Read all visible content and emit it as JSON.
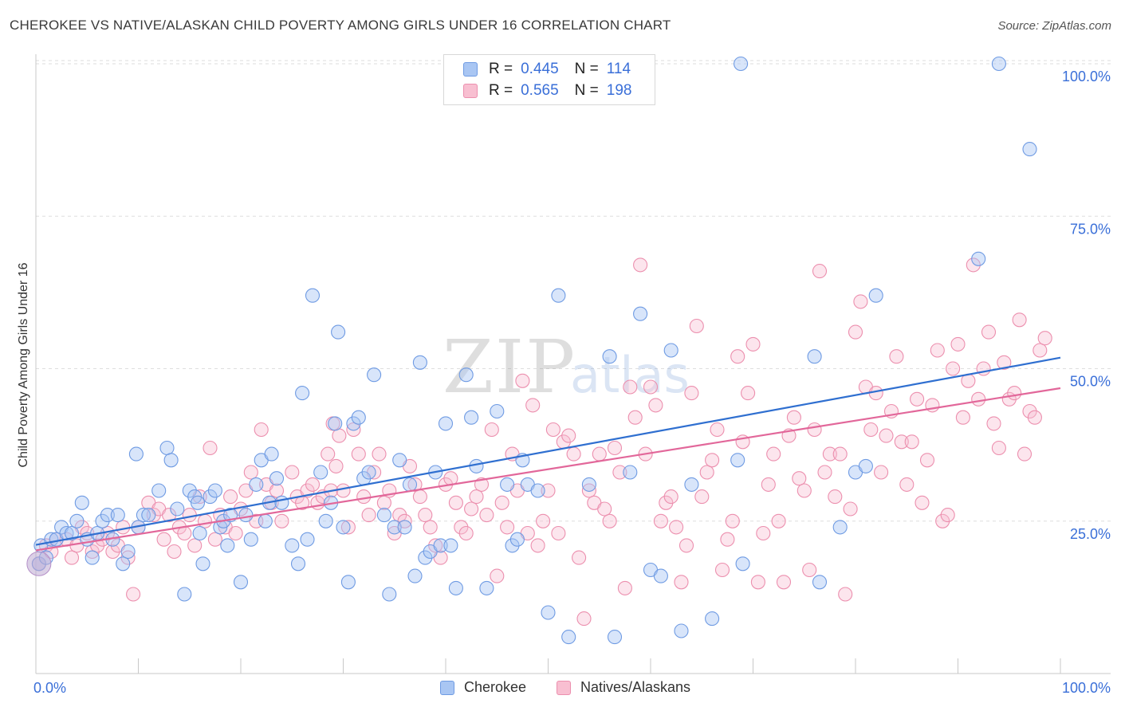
{
  "header": {
    "title": "CHEROKEE VS NATIVE/ALASKAN CHILD POVERTY AMONG GIRLS UNDER 16 CORRELATION CHART",
    "source": "Source: ZipAtlas.com"
  },
  "watermark": {
    "zip": "ZIP",
    "atlas": "atlas"
  },
  "legend": {
    "rows": [
      {
        "r_label": "R =",
        "r_value": "0.445",
        "n_label": "N =",
        "n_value": "114",
        "color": "#a9c6f3",
        "stroke": "#6f9be3"
      },
      {
        "r_label": "R =",
        "r_value": "0.565",
        "n_label": "N =",
        "n_value": "198",
        "color": "#f8bfd1",
        "stroke": "#ec8fae"
      }
    ]
  },
  "bottom_legend": [
    {
      "label": "Cherokee",
      "color": "#a9c6f3",
      "stroke": "#6f9be3"
    },
    {
      "label": "Natives/Alaskans",
      "color": "#f8bfd1",
      "stroke": "#ec8fae"
    }
  ],
  "chart_data": {
    "type": "scatter",
    "title": "CHEROKEE VS NATIVE/ALASKAN CHILD POVERTY AMONG GIRLS UNDER 16 CORRELATION CHART",
    "xlabel": "",
    "ylabel": "Child Poverty Among Girls Under 16",
    "xlim": [
      0,
      100
    ],
    "ylim": [
      0,
      100
    ],
    "x_tick_labels": [
      "0.0%",
      "100.0%"
    ],
    "y_tick_labels": [
      "25.0%",
      "50.0%",
      "75.0%",
      "100.0%"
    ],
    "y_ticks": [
      25,
      50,
      75,
      100
    ],
    "grid": "horizontal dashed",
    "legend_position": "top-center",
    "series": [
      {
        "name": "Cherokee",
        "color": "#6f9be3",
        "trend": {
          "x": [
            0,
            100
          ],
          "y": [
            21.1,
            51.8
          ]
        },
        "points": [
          [
            0.3,
            18
          ],
          [
            0.5,
            21
          ],
          [
            1,
            19
          ],
          [
            1.5,
            22
          ],
          [
            2,
            22
          ],
          [
            2.5,
            24
          ],
          [
            3,
            23
          ],
          [
            3.5,
            23
          ],
          [
            4,
            25
          ],
          [
            4.5,
            28
          ],
          [
            5,
            22
          ],
          [
            5.5,
            19
          ],
          [
            6,
            23
          ],
          [
            6.5,
            25
          ],
          [
            7,
            26
          ],
          [
            7.5,
            22
          ],
          [
            8,
            26
          ],
          [
            8.5,
            18
          ],
          [
            9,
            20
          ],
          [
            9.8,
            36
          ],
          [
            10,
            24
          ],
          [
            10.5,
            26
          ],
          [
            11,
            26
          ],
          [
            12,
            30
          ],
          [
            12.8,
            37
          ],
          [
            13.2,
            35
          ],
          [
            13.8,
            27
          ],
          [
            14.5,
            13
          ],
          [
            15,
            30
          ],
          [
            15.5,
            29
          ],
          [
            15.8,
            28
          ],
          [
            16,
            23
          ],
          [
            16.3,
            18
          ],
          [
            17,
            29
          ],
          [
            17.5,
            30
          ],
          [
            18,
            24
          ],
          [
            18.3,
            25
          ],
          [
            18.7,
            21
          ],
          [
            19,
            26
          ],
          [
            20,
            15
          ],
          [
            20.5,
            26
          ],
          [
            21,
            22
          ],
          [
            21.5,
            31
          ],
          [
            22,
            35
          ],
          [
            22.4,
            25
          ],
          [
            22.8,
            28
          ],
          [
            23,
            36
          ],
          [
            23.5,
            32
          ],
          [
            24,
            28
          ],
          [
            25,
            21
          ],
          [
            25.6,
            18
          ],
          [
            26,
            46
          ],
          [
            26.5,
            22
          ],
          [
            27,
            62
          ],
          [
            27.8,
            33
          ],
          [
            28.3,
            25
          ],
          [
            28.8,
            28
          ],
          [
            29.2,
            41
          ],
          [
            29.5,
            56
          ],
          [
            30,
            24
          ],
          [
            30.5,
            15
          ],
          [
            31,
            41
          ],
          [
            31.5,
            42
          ],
          [
            32,
            32
          ],
          [
            32.5,
            33
          ],
          [
            33,
            49
          ],
          [
            34,
            26
          ],
          [
            34.5,
            13
          ],
          [
            35,
            24
          ],
          [
            35.5,
            35
          ],
          [
            36,
            24
          ],
          [
            36.5,
            31
          ],
          [
            37,
            16
          ],
          [
            37.5,
            51
          ],
          [
            38,
            19
          ],
          [
            38.5,
            20
          ],
          [
            39,
            33
          ],
          [
            39.5,
            21
          ],
          [
            40,
            41
          ],
          [
            40.5,
            21
          ],
          [
            41,
            14
          ],
          [
            42,
            49
          ],
          [
            42.5,
            42
          ],
          [
            43,
            34
          ],
          [
            44,
            14
          ],
          [
            45,
            43
          ],
          [
            46,
            31
          ],
          [
            46.5,
            21
          ],
          [
            47,
            22
          ],
          [
            47.5,
            35
          ],
          [
            48,
            31
          ],
          [
            49,
            30
          ],
          [
            50,
            10
          ],
          [
            51,
            62
          ],
          [
            52,
            6
          ],
          [
            54,
            31
          ],
          [
            56,
            52
          ],
          [
            56.5,
            6
          ],
          [
            58,
            33
          ],
          [
            59,
            59
          ],
          [
            60,
            17
          ],
          [
            61,
            16
          ],
          [
            62,
            53
          ],
          [
            63,
            7
          ],
          [
            64,
            31
          ],
          [
            66,
            9
          ],
          [
            68.8,
            100
          ],
          [
            68.5,
            35
          ],
          [
            69,
            18
          ],
          [
            76,
            52
          ],
          [
            76.5,
            15
          ],
          [
            78.5,
            24
          ],
          [
            80,
            33
          ],
          [
            81,
            34
          ],
          [
            82,
            62
          ],
          [
            92,
            68
          ],
          [
            94,
            100
          ],
          [
            97,
            86
          ]
        ]
      },
      {
        "name": "Natives/Alaskans",
        "color": "#ec8fae",
        "trend": {
          "x": [
            0,
            100
          ],
          "y": [
            20.2,
            46.8
          ]
        },
        "points": [
          [
            0.3,
            18
          ],
          [
            1,
            21
          ],
          [
            1.5,
            20
          ],
          [
            2,
            22
          ],
          [
            3,
            22
          ],
          [
            3.5,
            19
          ],
          [
            4,
            21
          ],
          [
            4.5,
            24
          ],
          [
            5,
            23
          ],
          [
            5.5,
            20
          ],
          [
            6,
            21
          ],
          [
            6.5,
            22
          ],
          [
            7,
            23
          ],
          [
            7.5,
            20
          ],
          [
            8,
            21
          ],
          [
            8.5,
            24
          ],
          [
            9,
            19
          ],
          [
            9.5,
            13
          ],
          [
            10,
            24
          ],
          [
            11,
            28
          ],
          [
            11.5,
            26
          ],
          [
            12,
            27
          ],
          [
            12.5,
            22
          ],
          [
            13,
            26
          ],
          [
            13.5,
            20
          ],
          [
            14,
            24
          ],
          [
            14.5,
            23
          ],
          [
            15,
            26
          ],
          [
            15.5,
            21
          ],
          [
            16,
            29
          ],
          [
            16.5,
            25
          ],
          [
            17,
            37
          ],
          [
            17.5,
            22
          ],
          [
            18,
            26
          ],
          [
            18.5,
            24
          ],
          [
            19,
            29
          ],
          [
            19.5,
            23
          ],
          [
            20,
            27
          ],
          [
            20.5,
            30
          ],
          [
            21,
            33
          ],
          [
            21.5,
            25
          ],
          [
            22,
            40
          ],
          [
            22.5,
            31
          ],
          [
            23,
            28
          ],
          [
            23.5,
            30
          ],
          [
            24,
            25
          ],
          [
            25,
            33
          ],
          [
            25.5,
            29
          ],
          [
            26,
            28
          ],
          [
            26.5,
            30
          ],
          [
            27,
            31
          ],
          [
            27.5,
            28
          ],
          [
            28,
            29
          ],
          [
            28.5,
            36
          ],
          [
            28.8,
            30
          ],
          [
            29,
            41
          ],
          [
            29.3,
            34
          ],
          [
            29.6,
            39
          ],
          [
            30,
            30
          ],
          [
            30.5,
            24
          ],
          [
            31,
            40
          ],
          [
            31.5,
            36
          ],
          [
            32,
            29
          ],
          [
            32.5,
            26
          ],
          [
            33,
            33
          ],
          [
            33.5,
            36
          ],
          [
            34,
            28
          ],
          [
            34.5,
            30
          ],
          [
            35,
            23
          ],
          [
            35.5,
            26
          ],
          [
            36,
            25
          ],
          [
            36.5,
            34
          ],
          [
            37,
            31
          ],
          [
            37.5,
            29
          ],
          [
            38,
            26
          ],
          [
            38.5,
            24
          ],
          [
            39,
            21
          ],
          [
            39.5,
            19
          ],
          [
            40,
            31
          ],
          [
            40.5,
            32
          ],
          [
            41,
            28
          ],
          [
            41.5,
            24
          ],
          [
            42,
            23
          ],
          [
            42.5,
            27
          ],
          [
            43,
            29
          ],
          [
            43.5,
            31
          ],
          [
            44,
            26
          ],
          [
            44.5,
            40
          ],
          [
            45,
            16
          ],
          [
            45.5,
            28
          ],
          [
            46,
            24
          ],
          [
            46.5,
            36
          ],
          [
            47,
            30
          ],
          [
            47.5,
            48
          ],
          [
            48,
            23
          ],
          [
            48.5,
            44
          ],
          [
            49,
            21
          ],
          [
            49.5,
            25
          ],
          [
            50,
            30
          ],
          [
            50.5,
            40
          ],
          [
            51,
            23
          ],
          [
            51.5,
            38
          ],
          [
            52,
            39
          ],
          [
            52.5,
            36
          ],
          [
            53,
            19
          ],
          [
            53.5,
            9
          ],
          [
            54,
            30
          ],
          [
            54.5,
            28
          ],
          [
            55,
            36
          ],
          [
            55.5,
            27
          ],
          [
            56,
            25
          ],
          [
            56.5,
            37
          ],
          [
            57,
            33
          ],
          [
            57.5,
            14
          ],
          [
            58,
            47
          ],
          [
            58.5,
            42
          ],
          [
            59,
            67
          ],
          [
            59.5,
            36
          ],
          [
            60,
            47
          ],
          [
            60.5,
            44
          ],
          [
            61,
            25
          ],
          [
            61.5,
            28
          ],
          [
            62,
            29
          ],
          [
            62.5,
            24
          ],
          [
            63,
            15
          ],
          [
            63.5,
            21
          ],
          [
            64,
            46
          ],
          [
            64.5,
            57
          ],
          [
            65,
            29
          ],
          [
            65.5,
            33
          ],
          [
            66,
            35
          ],
          [
            66.5,
            40
          ],
          [
            67,
            17
          ],
          [
            67.5,
            22
          ],
          [
            68,
            25
          ],
          [
            68.5,
            52
          ],
          [
            69,
            38
          ],
          [
            69.5,
            46
          ],
          [
            70,
            54
          ],
          [
            70.5,
            15
          ],
          [
            71,
            23
          ],
          [
            71.5,
            31
          ],
          [
            72,
            36
          ],
          [
            72.5,
            25
          ],
          [
            73,
            15
          ],
          [
            73.5,
            39
          ],
          [
            74,
            42
          ],
          [
            74.5,
            32
          ],
          [
            75,
            30
          ],
          [
            75.5,
            17
          ],
          [
            76,
            40
          ],
          [
            76.5,
            66
          ],
          [
            77,
            33
          ],
          [
            77.5,
            36
          ],
          [
            78,
            29
          ],
          [
            78.5,
            36
          ],
          [
            79,
            13
          ],
          [
            79.5,
            27
          ],
          [
            80,
            56
          ],
          [
            80.5,
            61
          ],
          [
            81,
            47
          ],
          [
            81.5,
            40
          ],
          [
            82,
            46
          ],
          [
            82.5,
            33
          ],
          [
            83,
            39
          ],
          [
            83.5,
            43
          ],
          [
            84,
            52
          ],
          [
            84.5,
            38
          ],
          [
            85,
            31
          ],
          [
            85.5,
            38
          ],
          [
            86,
            45
          ],
          [
            86.5,
            28
          ],
          [
            87,
            35
          ],
          [
            87.5,
            44
          ],
          [
            88,
            53
          ],
          [
            88.5,
            25
          ],
          [
            89,
            26
          ],
          [
            89.5,
            50
          ],
          [
            90,
            54
          ],
          [
            90.5,
            42
          ],
          [
            91,
            48
          ],
          [
            91.5,
            67
          ],
          [
            92,
            45
          ],
          [
            92.5,
            50
          ],
          [
            93,
            56
          ],
          [
            93.5,
            41
          ],
          [
            94,
            37
          ],
          [
            94.5,
            51
          ],
          [
            95,
            45
          ],
          [
            95.5,
            46
          ],
          [
            96,
            58
          ],
          [
            96.5,
            36
          ],
          [
            97,
            43
          ],
          [
            97.5,
            42
          ],
          [
            98,
            53
          ],
          [
            98.5,
            55
          ]
        ]
      }
    ]
  }
}
